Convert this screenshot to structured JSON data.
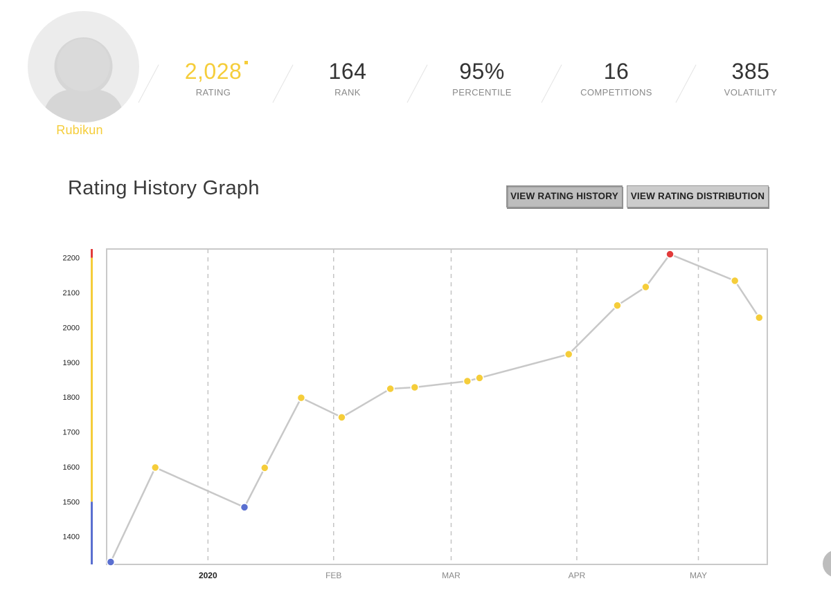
{
  "profile": {
    "handle": "Rubikun",
    "avatar_icon": "user-silhouette-icon"
  },
  "stats": [
    {
      "key": "rating",
      "value": "2,028",
      "label": "RATING"
    },
    {
      "key": "rank",
      "value": "164",
      "label": "RANK"
    },
    {
      "key": "percentile",
      "value": "95%",
      "label": "PERCENTILE"
    },
    {
      "key": "competitions",
      "value": "16",
      "label": "COMPETITIONS"
    },
    {
      "key": "volatility",
      "value": "385",
      "label": "VOLATILITY"
    }
  ],
  "graph": {
    "title": "Rating History Graph",
    "buttons": {
      "history": "VIEW RATING HISTORY",
      "distribution": "VIEW RATING DISTRIBUTION"
    }
  },
  "colors": {
    "yellow": "#f5cd3a",
    "blue": "#5a6fd0",
    "red": "#e23b3b",
    "line": "#c8c8c8",
    "grid": "#c4c4c4"
  },
  "chart_data": {
    "type": "line",
    "title": "Rating History Graph",
    "xlabel": "",
    "ylabel": "",
    "ylim": [
      1320,
      2225
    ],
    "xlim": [
      "2019-12-07",
      "2020-05-18"
    ],
    "grid": "vertical dashed at month starts",
    "rating_bands": [
      {
        "from": 1320,
        "to": 1500,
        "color": "#5a6fd0"
      },
      {
        "from": 1500,
        "to": 2200,
        "color": "#f5cd3a"
      },
      {
        "from": 2200,
        "to": 2225,
        "color": "#e23b3b"
      }
    ],
    "y_ticks": [
      1400,
      1500,
      1600,
      1700,
      1800,
      1900,
      2000,
      2100,
      2200
    ],
    "x_ticks": [
      {
        "date": "2020-01-01",
        "label": "2020",
        "bold": true
      },
      {
        "date": "2020-02-01",
        "label": "FEB",
        "bold": false
      },
      {
        "date": "2020-03-01",
        "label": "MAR",
        "bold": false
      },
      {
        "date": "2020-04-01",
        "label": "APR",
        "bold": false
      },
      {
        "date": "2020-05-01",
        "label": "MAY",
        "bold": false
      }
    ],
    "points": [
      {
        "date": "2019-12-08",
        "rating": 1327
      },
      {
        "date": "2019-12-19",
        "rating": 1598
      },
      {
        "date": "2020-01-10",
        "rating": 1484
      },
      {
        "date": "2020-01-15",
        "rating": 1597
      },
      {
        "date": "2020-01-24",
        "rating": 1798
      },
      {
        "date": "2020-02-03",
        "rating": 1742
      },
      {
        "date": "2020-02-15",
        "rating": 1824
      },
      {
        "date": "2020-02-21",
        "rating": 1828
      },
      {
        "date": "2020-03-05",
        "rating": 1846
      },
      {
        "date": "2020-03-08",
        "rating": 1855
      },
      {
        "date": "2020-03-30",
        "rating": 1923
      },
      {
        "date": "2020-04-11",
        "rating": 2063
      },
      {
        "date": "2020-04-18",
        "rating": 2116
      },
      {
        "date": "2020-04-24",
        "rating": 2210
      },
      {
        "date": "2020-05-10",
        "rating": 2134
      },
      {
        "date": "2020-05-16",
        "rating": 2028
      }
    ]
  }
}
